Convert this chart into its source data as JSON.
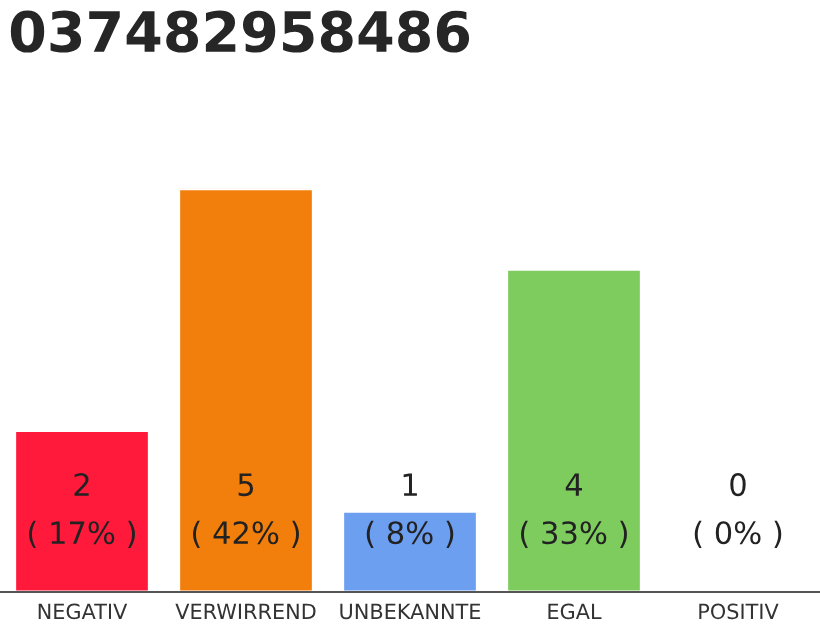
{
  "chart_data": {
    "type": "bar",
    "title": "037482958486",
    "categories": [
      "NEGATIV",
      "VERWIRREND",
      "UNBEKANNTE",
      "EGAL",
      "POSITIV"
    ],
    "values": [
      2,
      5,
      1,
      4,
      0
    ],
    "colors": [
      "#ff1a3c",
      "#f27f0c",
      "#6c9ff0",
      "#7ecb5e",
      null
    ],
    "value_labels": [
      "2\n( 17% )",
      "5\n( 42% )",
      "1\n( 8% )",
      "4\n( 33% )",
      "0\n( 0% )"
    ]
  }
}
